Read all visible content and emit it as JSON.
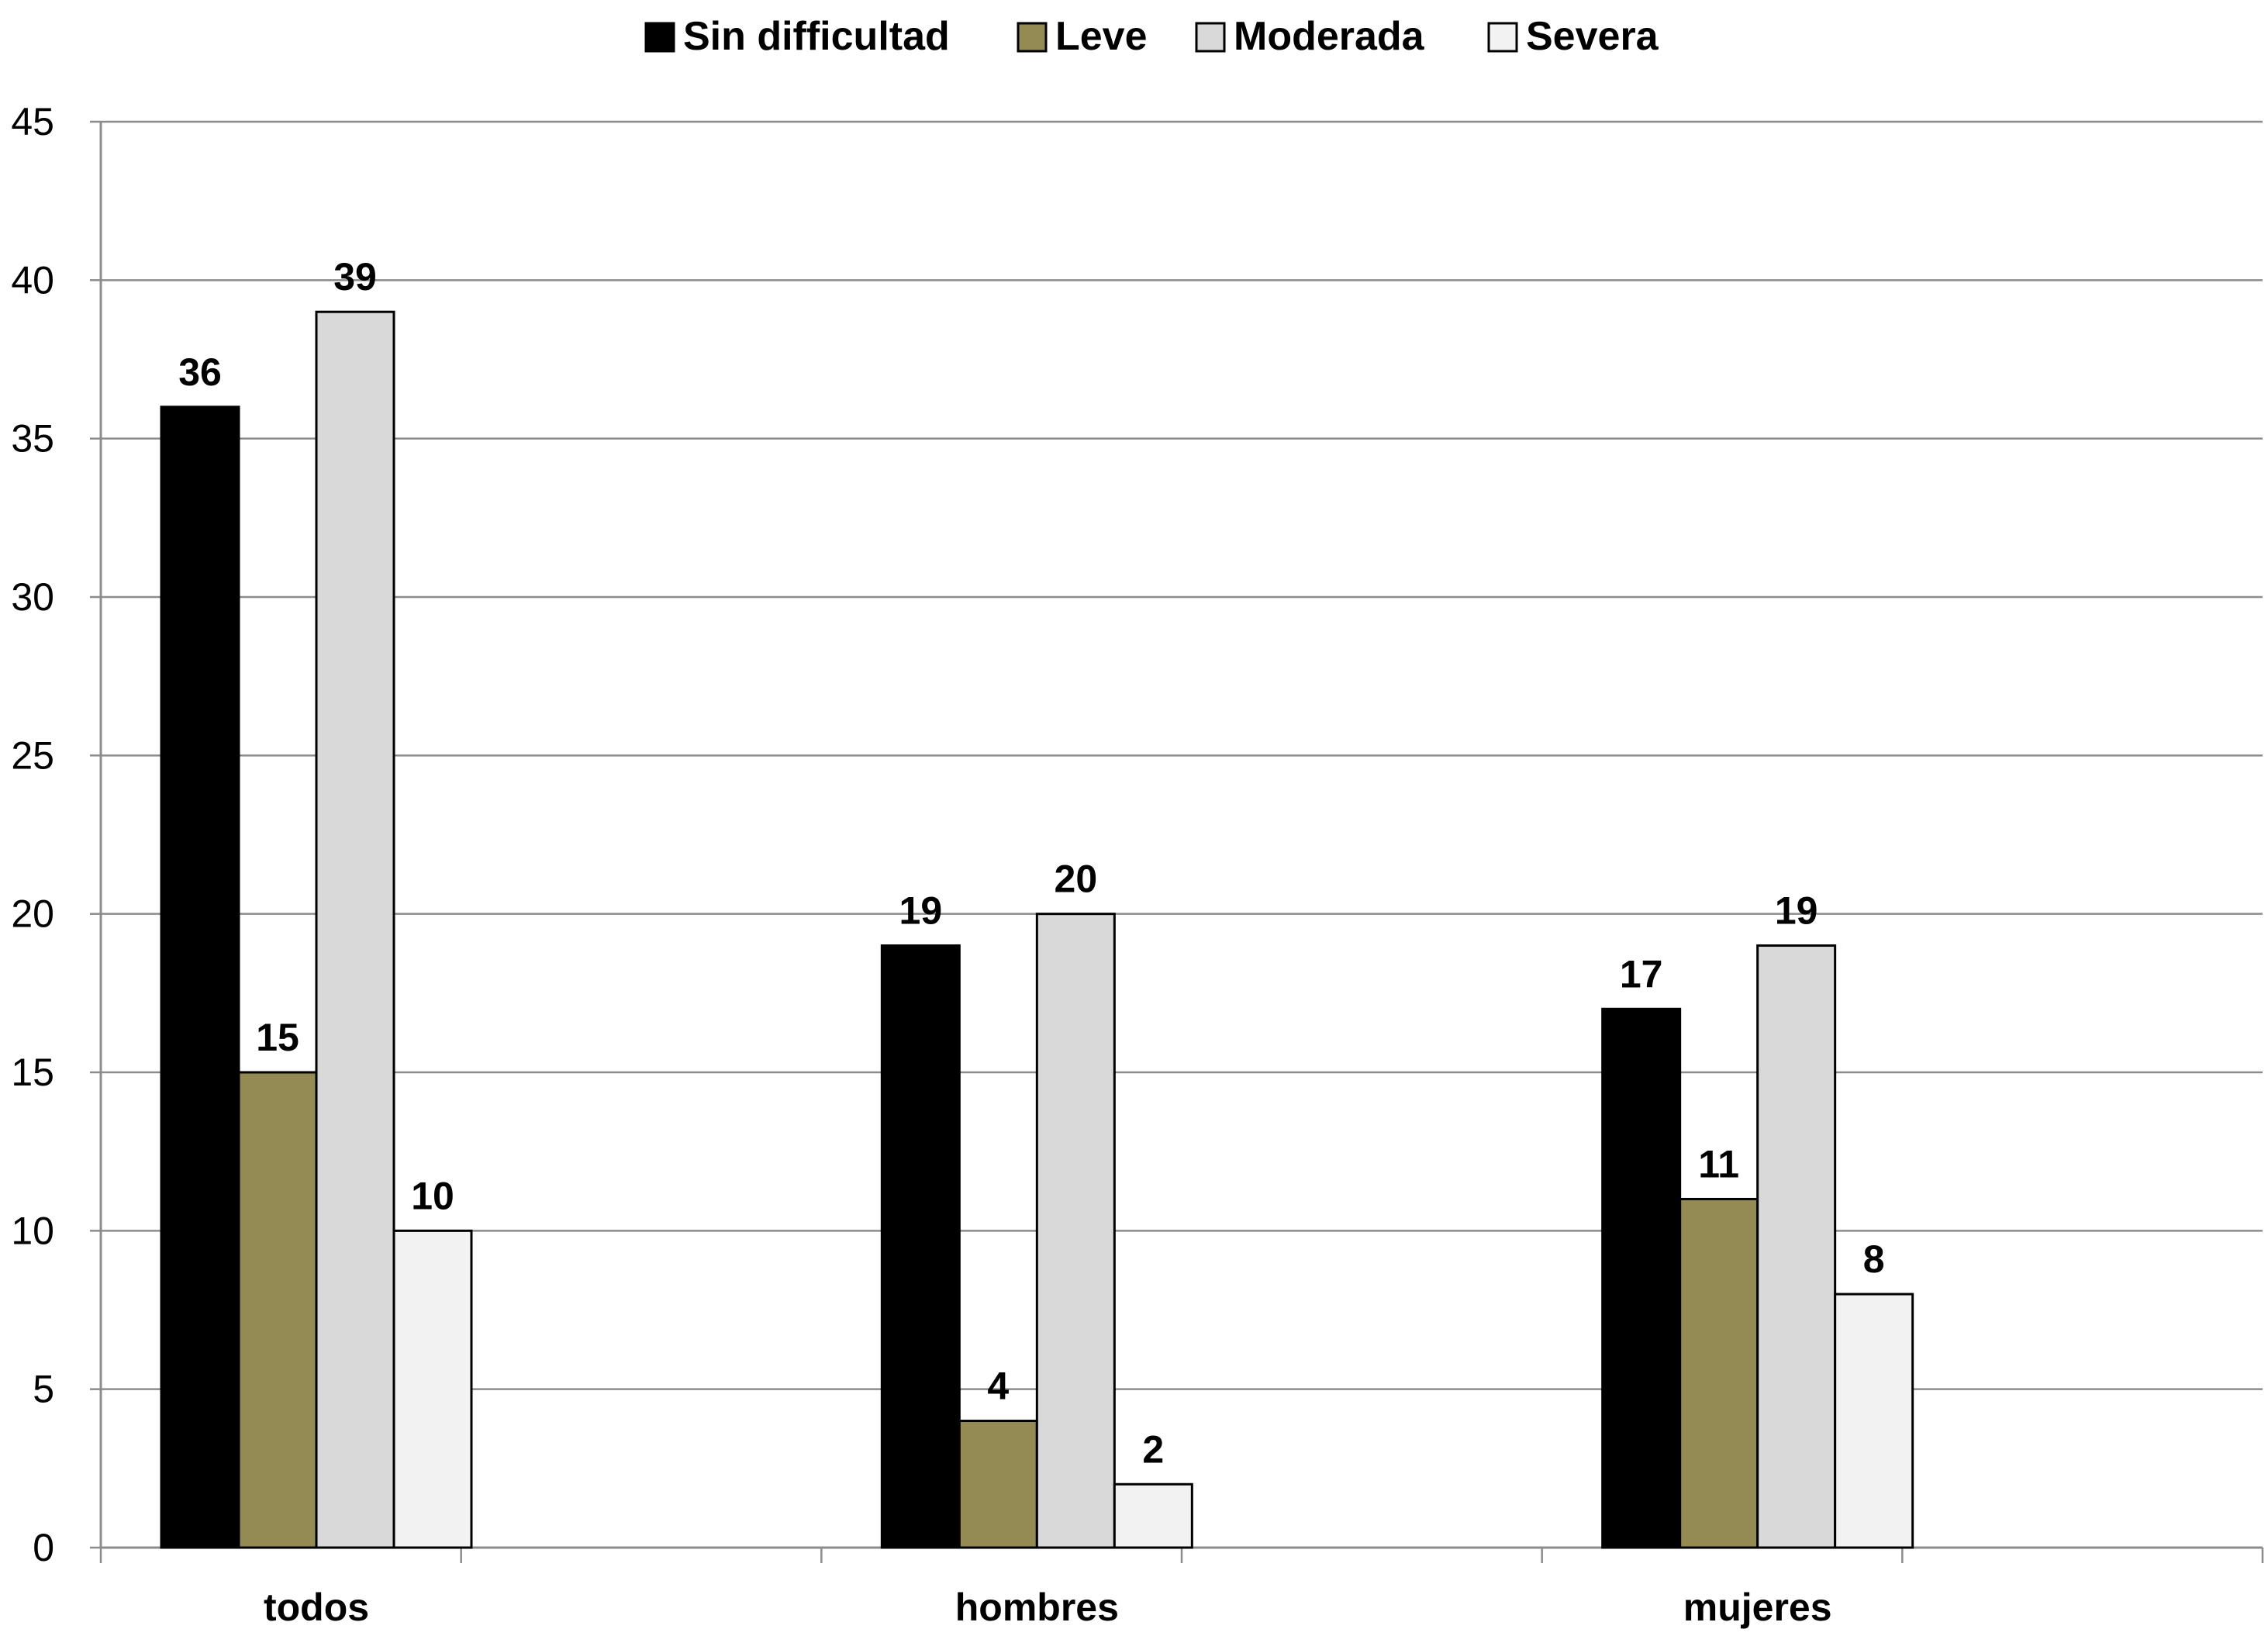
{
  "chart_data": {
    "type": "bar",
    "title": "",
    "xlabel": "",
    "ylabel": "",
    "categories": [
      "todos",
      "hombres",
      "mujeres"
    ],
    "series": [
      {
        "name": "Sin difficultad",
        "values": [
          36,
          19,
          17
        ],
        "color": "#000000"
      },
      {
        "name": "Leve",
        "values": [
          15,
          4,
          11
        ],
        "color": "#948A54"
      },
      {
        "name": "Moderada",
        "values": [
          39,
          20,
          19
        ],
        "color": "#D9D9D9"
      },
      {
        "name": "Severa",
        "values": [
          10,
          2,
          8
        ],
        "color": "#F2F2F2"
      }
    ],
    "ylim": [
      0,
      45
    ],
    "yticks": [
      "0",
      "5",
      "10",
      "15",
      "20",
      "25",
      "30",
      "35",
      "40",
      "45"
    ],
    "grid": true,
    "legend_position": "top",
    "data_labels": true
  }
}
